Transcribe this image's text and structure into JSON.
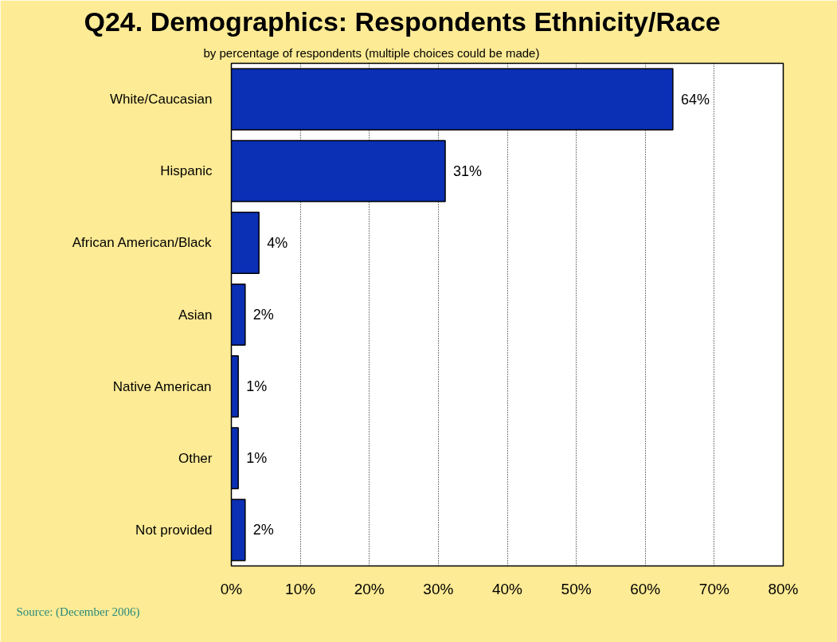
{
  "chart_data": {
    "type": "bar",
    "orientation": "horizontal",
    "title": "Q24. Demographics:  Respondents Ethnicity/Race",
    "subtitle": "by percentage of respondents (multiple choices could be made)",
    "categories": [
      "White/Caucasian",
      "Hispanic",
      "African American/Black",
      "Asian",
      "Native American",
      "Other",
      "Not provided"
    ],
    "values": [
      64,
      31,
      4,
      2,
      1,
      1,
      2
    ],
    "value_labels": [
      "64%",
      "31%",
      "4%",
      "2%",
      "1%",
      "1%",
      "2%"
    ],
    "color": "#0b2fb5",
    "xlim": [
      0,
      80
    ],
    "xticks": [
      {
        "value": 0,
        "label": "0%"
      },
      {
        "value": 10,
        "label": "10%"
      },
      {
        "value": 20,
        "label": "20%"
      },
      {
        "value": 30,
        "label": "30%"
      },
      {
        "value": 40,
        "label": "40%"
      },
      {
        "value": 50,
        "label": "50%"
      },
      {
        "value": 60,
        "label": "60%"
      },
      {
        "value": 70,
        "label": "70%"
      },
      {
        "value": 80,
        "label": "80%"
      }
    ],
    "grid": "x",
    "annotations": [
      "Source:  (December 2006)"
    ]
  }
}
